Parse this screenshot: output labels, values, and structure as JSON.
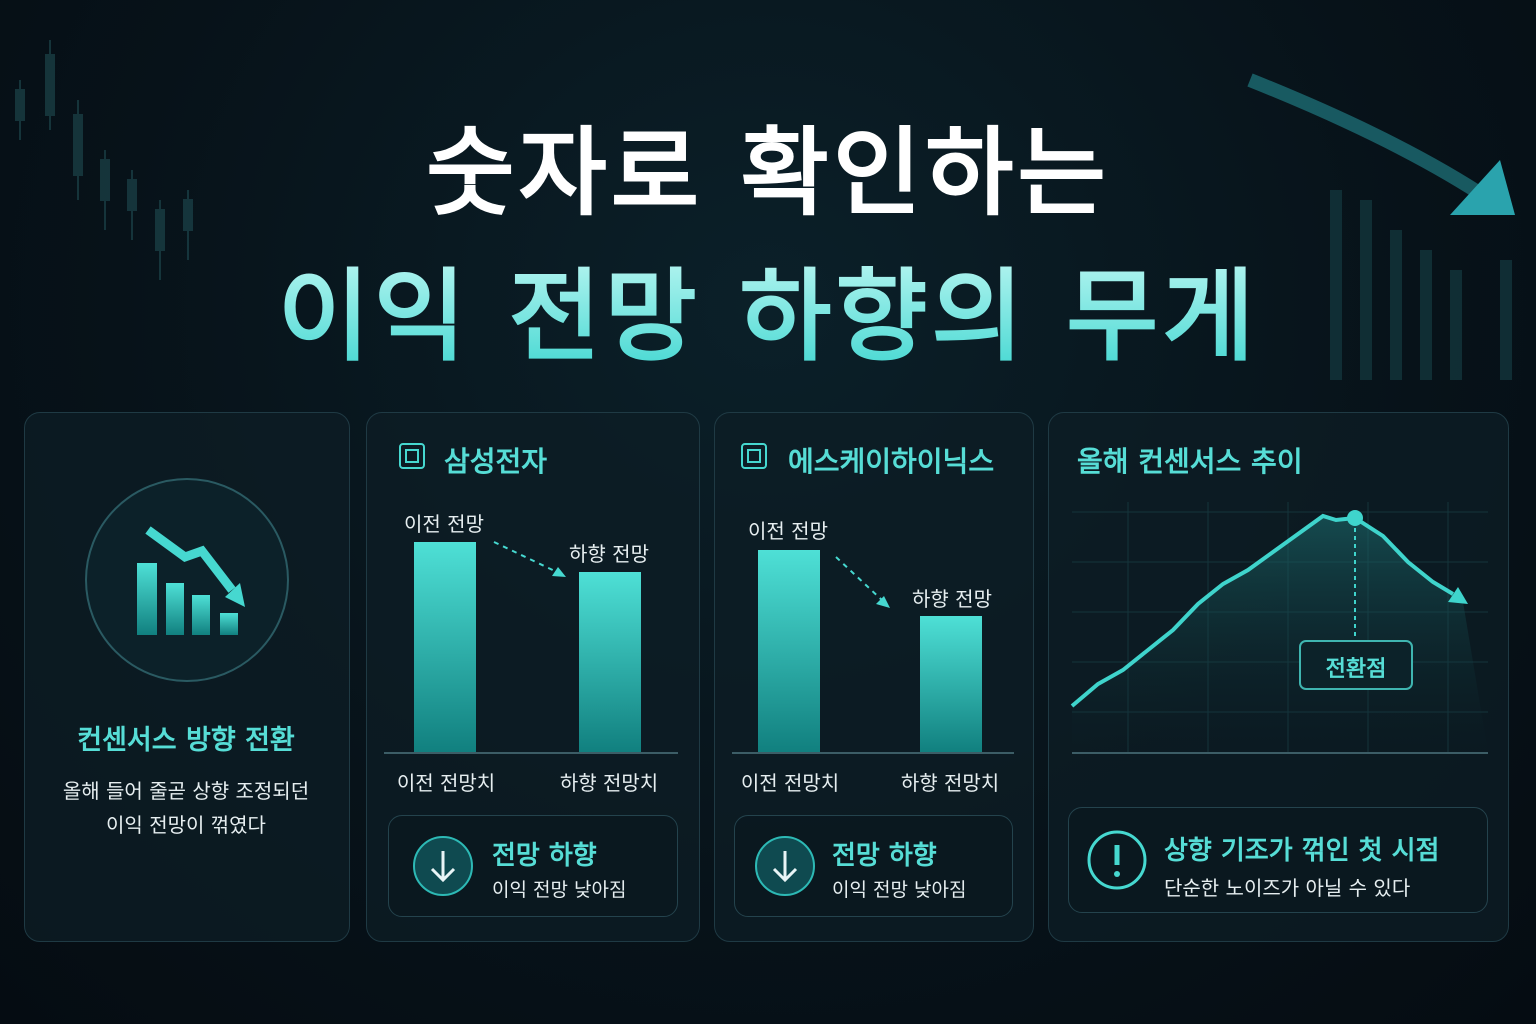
{
  "header": {
    "title_line1": "숫자로 확인하는",
    "title_line2": "이익 전망 하향의 무게"
  },
  "cards": [
    {
      "title": "컨센서스 방향 전환",
      "text_line1": "올해 들어 줄곧 상향 조정되던",
      "text_line2": "이익 전망이 꺾였다"
    },
    {
      "title": "삼성전자",
      "bar_labels": [
        "이전 전망",
        "하향 전망"
      ],
      "axis_labels": [
        "이전 전망치",
        "하향 전망치"
      ],
      "badge_title": "전망 하향",
      "badge_text": "이익 전망 낮아짐"
    },
    {
      "title": "에스케이하이닉스",
      "bar_labels": [
        "이전 전망",
        "하향 전망"
      ],
      "axis_labels": [
        "이전 전망치",
        "하향 전망치"
      ],
      "badge_title": "전망 하향",
      "badge_text": "이익 전망 낮아짐"
    },
    {
      "title": "올해 컨센서스 추이",
      "marker_label": "전환점",
      "note_title": "상향 기조가 꺾인 첫 시점",
      "note_text": "단순한 노이즈가 아닐 수 있다"
    }
  ]
}
